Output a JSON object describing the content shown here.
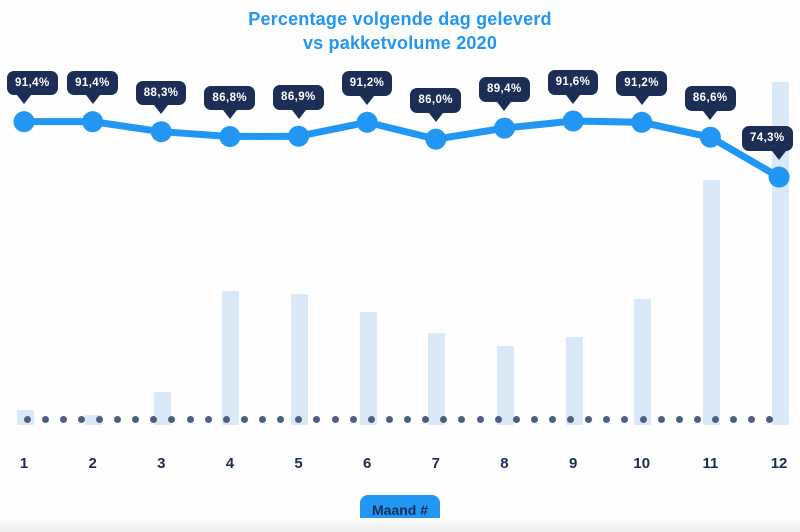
{
  "title": {
    "line1": "Percentage volgende dag geleverd",
    "line2": "vs pakketvolume 2020"
  },
  "x_axis": {
    "label_badge": "Maand #",
    "tick_labels": [
      "1",
      "2",
      "3",
      "4",
      "5",
      "6",
      "7",
      "8",
      "9",
      "10",
      "11",
      "12"
    ]
  },
  "colors": {
    "accent_blue": "#2196f3",
    "navy": "#1c2d56",
    "tick_navy": "#1b2c55",
    "bar_fill": "#d9e9f8",
    "baseline_dot": "#4d5e80",
    "badge_text": "#ffffff",
    "background": "#fefefe"
  },
  "chart_data": {
    "type": "line+bar combo",
    "title": "Percentage volgende dag geleverd vs pakketvolume 2020",
    "categories": [
      "1",
      "2",
      "3",
      "4",
      "5",
      "6",
      "7",
      "8",
      "9",
      "10",
      "11",
      "12"
    ],
    "xlabel": "Maand #",
    "ylabel": "",
    "grid": false,
    "legend": "none",
    "annotations": "dark navy callout badges above each line point; dotted horizontal baseline behind bars",
    "series": [
      {
        "name": "Percentage volgende dag geleverd",
        "type": "line",
        "unit": "%",
        "values": [
          91.4,
          91.4,
          88.3,
          86.8,
          86.9,
          91.2,
          86.0,
          89.4,
          91.6,
          91.2,
          86.6,
          74.3
        ],
        "labels": [
          "91,4%",
          "91,4%",
          "88,3%",
          "86,8%",
          "86,9%",
          "91,2%",
          "86,0%",
          "89,4%",
          "91,6%",
          "91,2%",
          "86,6%",
          "74,3%"
        ]
      },
      {
        "name": "Pakketvolume 2020",
        "type": "bar",
        "unit": "relative volume, unlabeled axis (December = 100)",
        "values": [
          4.4,
          2.9,
          9.6,
          39.1,
          38.2,
          32.9,
          26.8,
          23.0,
          25.7,
          36.7,
          71.4,
          100
        ]
      }
    ]
  }
}
